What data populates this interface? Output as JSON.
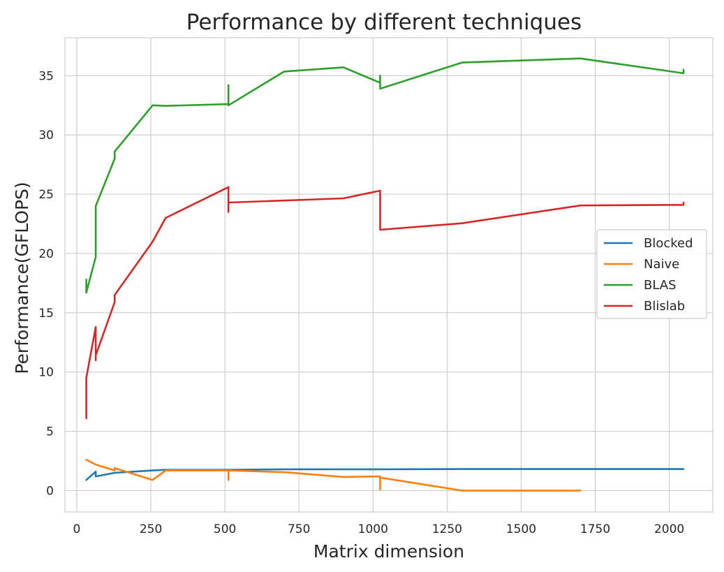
{
  "chart_data": {
    "type": "line",
    "title": "Performance by different techniques",
    "xlabel": "Matrix dimension",
    "ylabel": "Performance(GFLOPS)",
    "xlim": [
      -40,
      2147
    ],
    "ylim": [
      -1.8,
      38.2
    ],
    "xticks": [
      0,
      250,
      500,
      750,
      1000,
      1250,
      1500,
      1750,
      2000
    ],
    "yticks": [
      0,
      5,
      10,
      15,
      20,
      25,
      30,
      35
    ],
    "grid": true,
    "legend_position": "center-right",
    "series": [
      {
        "name": "Blocked",
        "color": "#1f77b4",
        "x": [
          32,
          64,
          64,
          128,
          256,
          300,
          512,
          700,
          1024,
          1300,
          1700,
          2048
        ],
        "y": [
          0.9,
          1.6,
          1.2,
          1.5,
          1.7,
          1.75,
          1.75,
          1.8,
          1.8,
          1.82,
          1.82,
          1.82
        ]
      },
      {
        "name": "Naive",
        "color": "#ff7f0e",
        "x": [
          32,
          64,
          128,
          128,
          256,
          300,
          512,
          512,
          512,
          700,
          900,
          1024,
          1024,
          1024,
          1300,
          1700
        ],
        "y": [
          2.6,
          2.2,
          1.7,
          1.9,
          0.9,
          1.7,
          1.7,
          0.9,
          1.7,
          1.55,
          1.15,
          1.2,
          0.1,
          1.1,
          0.0,
          0.0
        ]
      },
      {
        "name": "BLAS",
        "color": "#2ca02c",
        "x": [
          32,
          32,
          64,
          64,
          128,
          128,
          256,
          300,
          512,
          512,
          512,
          700,
          900,
          1024,
          1024,
          1024,
          1300,
          1700,
          2048,
          2048
        ],
        "y": [
          17.8,
          16.7,
          19.7,
          24.0,
          28.0,
          28.6,
          32.5,
          32.45,
          32.6,
          34.2,
          32.5,
          35.35,
          35.7,
          34.4,
          35.0,
          33.9,
          36.1,
          36.45,
          35.2,
          35.5
        ]
      },
      {
        "name": "Blislab",
        "color": "#d62728",
        "x": [
          32,
          32,
          64,
          64,
          64,
          128,
          128,
          256,
          300,
          512,
          512,
          512,
          900,
          1024,
          1024,
          1300,
          1700,
          2048,
          2048
        ],
        "y": [
          6.1,
          9.5,
          13.8,
          11.0,
          11.4,
          15.9,
          16.5,
          21.0,
          23.0,
          25.6,
          23.5,
          24.3,
          24.65,
          25.3,
          22.0,
          22.55,
          24.05,
          24.1,
          24.3
        ]
      }
    ]
  }
}
